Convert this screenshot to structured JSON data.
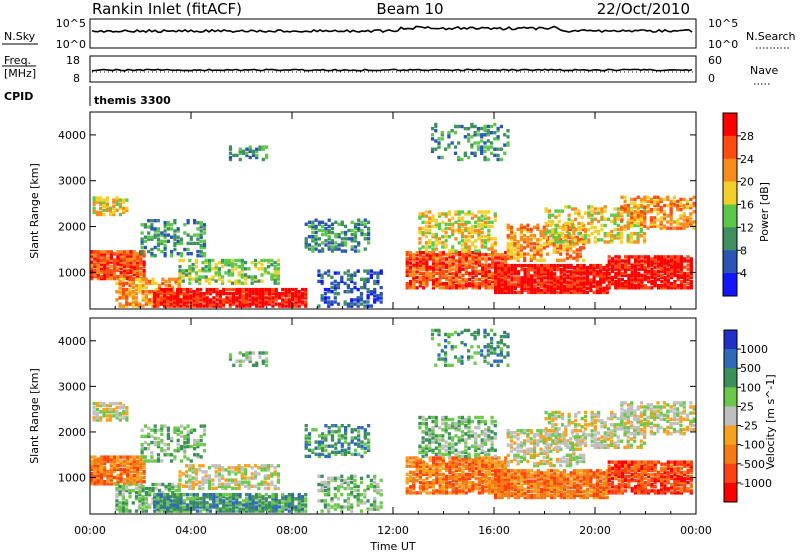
{
  "header": {
    "station": "Rankin Inlet (fitACF)",
    "beam": "Beam 10",
    "date": "22/Oct/2010"
  },
  "noise_panel": {
    "left_label": "N.Sky",
    "right_label": "N.Search",
    "left_ticks": [
      "10^5",
      "10^0"
    ],
    "right_ticks": [
      "10^5",
      "10^0"
    ]
  },
  "freq_panel": {
    "left_label": "Freq.",
    "left_unit": "[MHz]",
    "left_ticks": [
      "18",
      "8"
    ],
    "right_label": "Nave",
    "right_ticks": [
      "60",
      "0"
    ]
  },
  "cpid_panel": {
    "label": "CPID",
    "value": "themis 3300"
  },
  "time_axis": {
    "label": "Time UT",
    "ticks": [
      "00:00",
      "04:00",
      "08:00",
      "12:00",
      "16:00",
      "20:00",
      "00:00"
    ]
  },
  "chart_data": [
    {
      "type": "heatmap",
      "name": "power",
      "ylabel": "Slant Range [km]",
      "yticks": [
        "1000",
        "2000",
        "3000",
        "4000"
      ],
      "ylim": [
        200,
        4500
      ],
      "xlim": [
        0,
        24
      ],
      "colorbar": {
        "label": "Power [dB]",
        "ticks": [
          "4",
          "8",
          "12",
          "16",
          "20",
          "24",
          "28"
        ],
        "colors": [
          "#1414ff",
          "#2b55b5",
          "#3f8f60",
          "#5cc84a",
          "#f2d02a",
          "#f58c1c",
          "#ff4a10",
          "#ff0000"
        ]
      }
    },
    {
      "type": "heatmap",
      "name": "velocity",
      "ylabel": "Slant Range [km]",
      "yticks": [
        "1000",
        "2000",
        "3000",
        "4000"
      ],
      "ylim": [
        200,
        4500
      ],
      "xlim": [
        0,
        24
      ],
      "colorbar": {
        "label": "Velocity [m s^-1]",
        "ticks": [
          "1000",
          "500",
          "100",
          "25",
          "-25",
          "-100",
          "-500",
          "-1000"
        ],
        "colors": [
          "#2030c8",
          "#2e6ab8",
          "#3d8f5a",
          "#6cc84a",
          "#bfbfbf",
          "#f5a21e",
          "#f57a14",
          "#ff4010",
          "#ff0000"
        ]
      }
    }
  ]
}
